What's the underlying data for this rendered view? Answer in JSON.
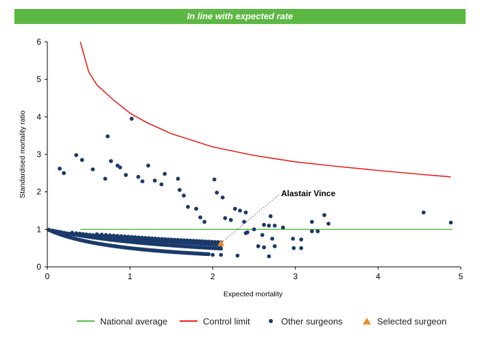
{
  "banner": {
    "title": "In line with expected rate"
  },
  "colors": {
    "banner": "#5cb843",
    "national_average": "#5cb843",
    "control_limit": "#e8201b",
    "other_surgeons": "#1b3a6b",
    "selected_surgeon": "#f08a24"
  },
  "chart_data": {
    "type": "scatter",
    "xlabel": "Expected mortality",
    "ylabel": "Standardised mortality ratio",
    "xlim": [
      0,
      5
    ],
    "ylim": [
      0,
      6
    ],
    "x_ticks": [
      "0",
      "1",
      "2",
      "3",
      "4",
      "5"
    ],
    "y_ticks": [
      "0",
      "1",
      "2",
      "3",
      "4",
      "5",
      "6"
    ],
    "grid": false,
    "legend_position": "bottom",
    "legend": [
      "National average",
      "Control limit",
      "Other surgeons",
      "Selected surgeon"
    ],
    "national_average": {
      "name": "National average",
      "y": 1,
      "x_range": [
        0.4,
        4.9
      ]
    },
    "control_limit": {
      "name": "Control limit",
      "points": [
        [
          0.4,
          6.0
        ],
        [
          0.5,
          5.2
        ],
        [
          0.6,
          4.85
        ],
        [
          0.8,
          4.45
        ],
        [
          1.0,
          4.1
        ],
        [
          1.2,
          3.85
        ],
        [
          1.5,
          3.55
        ],
        [
          2.0,
          3.2
        ],
        [
          2.5,
          2.97
        ],
        [
          3.0,
          2.8
        ],
        [
          3.5,
          2.68
        ],
        [
          4.0,
          2.57
        ],
        [
          4.5,
          2.47
        ],
        [
          4.88,
          2.4
        ]
      ]
    },
    "other_surgeons_name": "Other surgeons",
    "curve_bands": [
      {
        "deaths": 1,
        "x_range": [
          0.02,
          1.95
        ],
        "count": 90
      },
      {
        "deaths": 2,
        "x_range": [
          0.02,
          2.1
        ],
        "count": 75
      },
      {
        "deaths": 3,
        "x_range": [
          0.3,
          2.1
        ],
        "count": 55
      },
      {
        "deaths": 4,
        "x_range": [
          0.6,
          2.1
        ],
        "count": 38
      }
    ],
    "other_surgeons_scatter": [
      [
        0.15,
        2.62
      ],
      [
        0.2,
        2.5
      ],
      [
        0.35,
        2.98
      ],
      [
        0.42,
        2.85
      ],
      [
        0.55,
        2.6
      ],
      [
        0.7,
        2.35
      ],
      [
        0.73,
        3.48
      ],
      [
        0.77,
        2.82
      ],
      [
        0.85,
        2.7
      ],
      [
        0.88,
        2.65
      ],
      [
        0.95,
        2.45
      ],
      [
        1.02,
        3.95
      ],
      [
        1.1,
        2.4
      ],
      [
        1.15,
        2.28
      ],
      [
        1.22,
        2.7
      ],
      [
        1.3,
        2.3
      ],
      [
        1.38,
        2.2
      ],
      [
        1.42,
        2.48
      ],
      [
        1.58,
        2.35
      ],
      [
        1.6,
        2.05
      ],
      [
        1.65,
        1.9
      ],
      [
        1.7,
        1.6
      ],
      [
        1.8,
        1.55
      ],
      [
        1.85,
        1.32
      ],
      [
        1.9,
        1.2
      ],
      [
        2.02,
        2.33
      ],
      [
        2.05,
        1.98
      ],
      [
        2.12,
        1.85
      ],
      [
        2.15,
        1.3
      ],
      [
        2.22,
        1.25
      ],
      [
        2.27,
        1.55
      ],
      [
        2.33,
        1.5
      ],
      [
        2.4,
        1.45
      ],
      [
        2.4,
        0.9
      ],
      [
        2.42,
        0.92
      ],
      [
        2.38,
        1.2
      ],
      [
        2.5,
        1.0
      ],
      [
        2.55,
        0.55
      ],
      [
        2.6,
        0.85
      ],
      [
        2.62,
        1.12
      ],
      [
        2.68,
        1.1
      ],
      [
        2.7,
        1.35
      ],
      [
        2.72,
        0.75
      ],
      [
        2.75,
        1.1
      ],
      [
        2.75,
        0.55
      ],
      [
        2.62,
        0.52
      ],
      [
        2.68,
        0.28
      ],
      [
        2.85,
        1.05
      ],
      [
        2.97,
        0.75
      ],
      [
        2.98,
        0.5
      ],
      [
        3.07,
        0.73
      ],
      [
        3.07,
        0.5
      ],
      [
        3.2,
        1.2
      ],
      [
        3.2,
        0.95
      ],
      [
        3.27,
        0.95
      ],
      [
        3.35,
        1.38
      ],
      [
        3.4,
        1.15
      ],
      [
        4.55,
        1.45
      ],
      [
        4.88,
        1.18
      ],
      [
        2.0,
        0.32
      ],
      [
        2.1,
        0.32
      ],
      [
        2.3,
        0.3
      ]
    ],
    "selected_surgeon": {
      "name": "Selected surgeon",
      "label": "Alastair Vince",
      "x": 2.1,
      "y": 0.63
    }
  }
}
